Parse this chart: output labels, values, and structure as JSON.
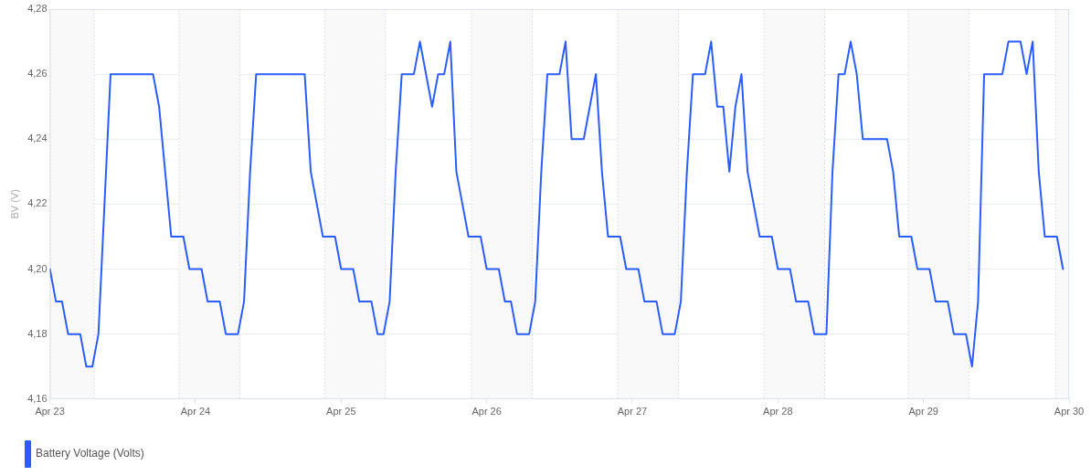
{
  "chart_data": {
    "type": "line",
    "ylabel": "BV (V)",
    "legend": "bottom left",
    "grid": "y",
    "marker": "none",
    "line_style": "solid",
    "xlim": [
      "--04-23",
      "--04-30"
    ],
    "xticks": [
      {
        "value": "--04-23",
        "label": "Apr 23"
      },
      {
        "value": "--04-24",
        "label": "Apr 24"
      },
      {
        "value": "--04-25",
        "label": "Apr 25"
      },
      {
        "value": "--04-26",
        "label": "Apr 26"
      },
      {
        "value": "--04-27",
        "label": "Apr 27"
      },
      {
        "value": "--04-28",
        "label": "Apr 28"
      },
      {
        "value": "--04-29",
        "label": "Apr 29"
      },
      {
        "value": "--04-30",
        "label": "Apr 30"
      }
    ],
    "ylim": [
      4.16,
      4.28
    ],
    "yticks": [
      {
        "value": 4.16,
        "label": "4,16"
      },
      {
        "value": 4.18,
        "label": "4,18"
      },
      {
        "value": 4.2,
        "label": "4,20"
      },
      {
        "value": 4.22,
        "label": "4,22"
      },
      {
        "value": 4.24,
        "label": "4,24"
      },
      {
        "value": 4.26,
        "label": "4,26"
      },
      {
        "value": 4.28,
        "label": "4,28"
      }
    ],
    "bands": [
      {
        "axis": "x",
        "from": "--04-23T00:00",
        "to": "--04-23T07:18",
        "color": "#f9f9fa"
      },
      {
        "axis": "x",
        "from": "--04-23T21:18",
        "to": "--04-24T07:18",
        "color": "#f9f9fa"
      },
      {
        "axis": "x",
        "from": "--04-24T21:18",
        "to": "--04-25T07:18",
        "color": "#f9f9fa"
      },
      {
        "axis": "x",
        "from": "--04-25T21:30",
        "to": "--04-26T07:30",
        "color": "#f9f9fa"
      },
      {
        "axis": "x",
        "from": "--04-26T21:36",
        "to": "--04-27T07:36",
        "color": "#f9f9fa"
      },
      {
        "axis": "x",
        "from": "--04-27T21:42",
        "to": "--04-28T07:42",
        "color": "#f9f9fa"
      },
      {
        "axis": "x",
        "from": "--04-28T21:30",
        "to": "--04-29T07:30",
        "color": "#f9f9fa"
      },
      {
        "axis": "x",
        "from": "--04-29T21:48",
        "to": "--04-30T00:00",
        "color": "#f9f9fa"
      }
    ],
    "series": [
      {
        "name": "Battery Voltage (Volts)",
        "color": "#2a5cff",
        "x": [
          "--04-23T00:00",
          "--04-23T01:00",
          "--04-23T02:00",
          "--04-23T03:00",
          "--04-23T05:00",
          "--04-23T06:00",
          "--04-23T07:00",
          "--04-23T08:00",
          "--04-23T09:00",
          "--04-23T10:00",
          "--04-23T17:00",
          "--04-23T18:00",
          "--04-23T20:00",
          "--04-23T22:00",
          "--04-23T23:00",
          "--04-24T01:00",
          "--04-24T02:00",
          "--04-24T04:00",
          "--04-24T05:00",
          "--04-24T07:00",
          "--04-24T08:00",
          "--04-24T09:00",
          "--04-24T10:00",
          "--04-24T18:00",
          "--04-24T19:00",
          "--04-24T21:00",
          "--04-24T23:00",
          "--04-25T00:00",
          "--04-25T02:00",
          "--04-25T03:00",
          "--04-25T05:00",
          "--04-25T06:00",
          "--04-25T07:00",
          "--04-25T08:00",
          "--04-25T09:00",
          "--04-25T10:00",
          "--04-25T12:00",
          "--04-25T13:00",
          "--04-25T15:00",
          "--04-25T16:00",
          "--04-25T17:00",
          "--04-25T18:00",
          "--04-25T19:00",
          "--04-25T21:00",
          "--04-25T23:00",
          "--04-26T00:00",
          "--04-26T02:00",
          "--04-26T03:00",
          "--04-26T04:00",
          "--04-26T05:00",
          "--04-26T07:00",
          "--04-26T08:00",
          "--04-26T09:00",
          "--04-26T10:00",
          "--04-26T12:00",
          "--04-26T13:00",
          "--04-26T14:00",
          "--04-26T16:00",
          "--04-26T18:00",
          "--04-26T19:00",
          "--04-26T20:00",
          "--04-26T22:00",
          "--04-26T23:00",
          "--04-27T01:00",
          "--04-27T02:00",
          "--04-27T04:00",
          "--04-27T05:00",
          "--04-27T07:00",
          "--04-27T08:00",
          "--04-27T09:00",
          "--04-27T10:00",
          "--04-27T12:00",
          "--04-27T13:00",
          "--04-27T14:00",
          "--04-27T15:00",
          "--04-27T16:00",
          "--04-27T17:00",
          "--04-27T18:00",
          "--04-27T19:00",
          "--04-27T21:00",
          "--04-27T23:00",
          "--04-28T00:00",
          "--04-28T02:00",
          "--04-28T03:00",
          "--04-28T05:00",
          "--04-28T06:00",
          "--04-28T08:00",
          "--04-28T09:00",
          "--04-28T10:00",
          "--04-28T11:00",
          "--04-28T12:00",
          "--04-28T13:00",
          "--04-28T14:00",
          "--04-28T18:00",
          "--04-28T19:00",
          "--04-28T20:00",
          "--04-28T22:00",
          "--04-28T23:00",
          "--04-29T01:00",
          "--04-29T02:00",
          "--04-29T04:00",
          "--04-29T05:00",
          "--04-29T07:00",
          "--04-29T08:00",
          "--04-29T09:00",
          "--04-29T10:00",
          "--04-29T13:00",
          "--04-29T14:00",
          "--04-29T16:00",
          "--04-29T17:00",
          "--04-29T18:00",
          "--04-29T19:00",
          "--04-29T20:00",
          "--04-29T22:00",
          "--04-29T23:00"
        ],
        "values": [
          4.2,
          4.19,
          4.19,
          4.18,
          4.18,
          4.17,
          4.17,
          4.18,
          4.22,
          4.26,
          4.26,
          4.25,
          4.21,
          4.21,
          4.2,
          4.2,
          4.19,
          4.19,
          4.18,
          4.18,
          4.19,
          4.23,
          4.26,
          4.26,
          4.23,
          4.21,
          4.21,
          4.2,
          4.2,
          4.19,
          4.19,
          4.18,
          4.18,
          4.19,
          4.23,
          4.26,
          4.26,
          4.27,
          4.25,
          4.26,
          4.26,
          4.27,
          4.23,
          4.21,
          4.21,
          4.2,
          4.2,
          4.19,
          4.19,
          4.18,
          4.18,
          4.19,
          4.23,
          4.26,
          4.26,
          4.27,
          4.24,
          4.24,
          4.26,
          4.23,
          4.21,
          4.21,
          4.2,
          4.2,
          4.19,
          4.19,
          4.18,
          4.18,
          4.19,
          4.23,
          4.26,
          4.26,
          4.27,
          4.25,
          4.25,
          4.23,
          4.25,
          4.26,
          4.23,
          4.21,
          4.21,
          4.2,
          4.2,
          4.19,
          4.19,
          4.18,
          4.18,
          4.23,
          4.26,
          4.26,
          4.27,
          4.26,
          4.24,
          4.24,
          4.23,
          4.21,
          4.21,
          4.2,
          4.2,
          4.19,
          4.19,
          4.18,
          4.18,
          4.17,
          4.19,
          4.26,
          4.26,
          4.27,
          4.27,
          4.26,
          4.27,
          4.23,
          4.21,
          4.21,
          4.2
        ]
      }
    ]
  }
}
